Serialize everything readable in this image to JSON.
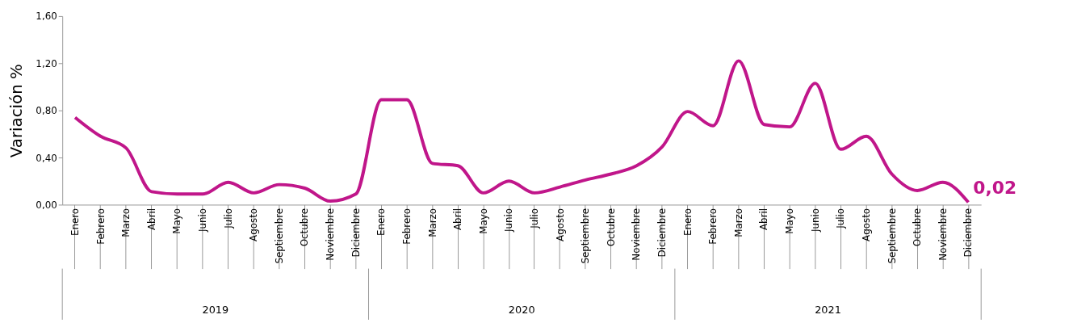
{
  "chart_data": {
    "type": "line",
    "ylabel": "Variación %",
    "categories": [
      "Enero",
      "Febrero",
      "Marzo",
      "Abril",
      "Mayo",
      "Junio",
      "Julio",
      "Agosto",
      "Septiembre",
      "Octubre",
      "Noviembre",
      "Diciembre",
      "Enero",
      "Febrero",
      "Marzo",
      "Abril",
      "Mayo",
      "Junio",
      "Julio",
      "Agosto",
      "Septiembre",
      "Octubre",
      "Noviembre",
      "Diciembre",
      "Enero",
      "Febrero",
      "Marzo",
      "Abril",
      "Mayo",
      "Junio",
      "Julio",
      "Agosto",
      "Septiembre",
      "Octubre",
      "Noviembre",
      "Diciembre"
    ],
    "series": [
      {
        "color": "#c0168a",
        "values": [
          0.74,
          0.58,
          0.48,
          0.11,
          0.09,
          0.09,
          0.19,
          0.1,
          0.17,
          0.14,
          0.03,
          0.09,
          0.89,
          0.89,
          0.35,
          0.33,
          0.1,
          0.2,
          0.1,
          0.15,
          0.21,
          0.26,
          0.33,
          0.49,
          0.79,
          0.67,
          1.22,
          0.68,
          0.66,
          1.03,
          0.47,
          0.58,
          0.26,
          0.12,
          0.19,
          0.02
        ],
        "value_labels": [
          null,
          null,
          null,
          null,
          null,
          null,
          null,
          null,
          null,
          null,
          null,
          null,
          null,
          null,
          null,
          null,
          null,
          null,
          null,
          null,
          null,
          null,
          null,
          null,
          null,
          null,
          null,
          null,
          null,
          null,
          null,
          null,
          null,
          null,
          null,
          "0,02"
        ]
      }
    ],
    "ylim": [
      0,
      1.6
    ],
    "yticks": [
      {
        "value": 0,
        "label": "0,00"
      },
      {
        "value": 0.4,
        "label": "0,40"
      },
      {
        "value": 0.8,
        "label": "0,80"
      },
      {
        "value": 1.2,
        "label": "1,20"
      },
      {
        "value": 1.6,
        "label": "1,60"
      }
    ],
    "annotations": [
      "2019",
      "2020",
      "2021"
    ],
    "marker": "none",
    "line_style": "solid"
  }
}
